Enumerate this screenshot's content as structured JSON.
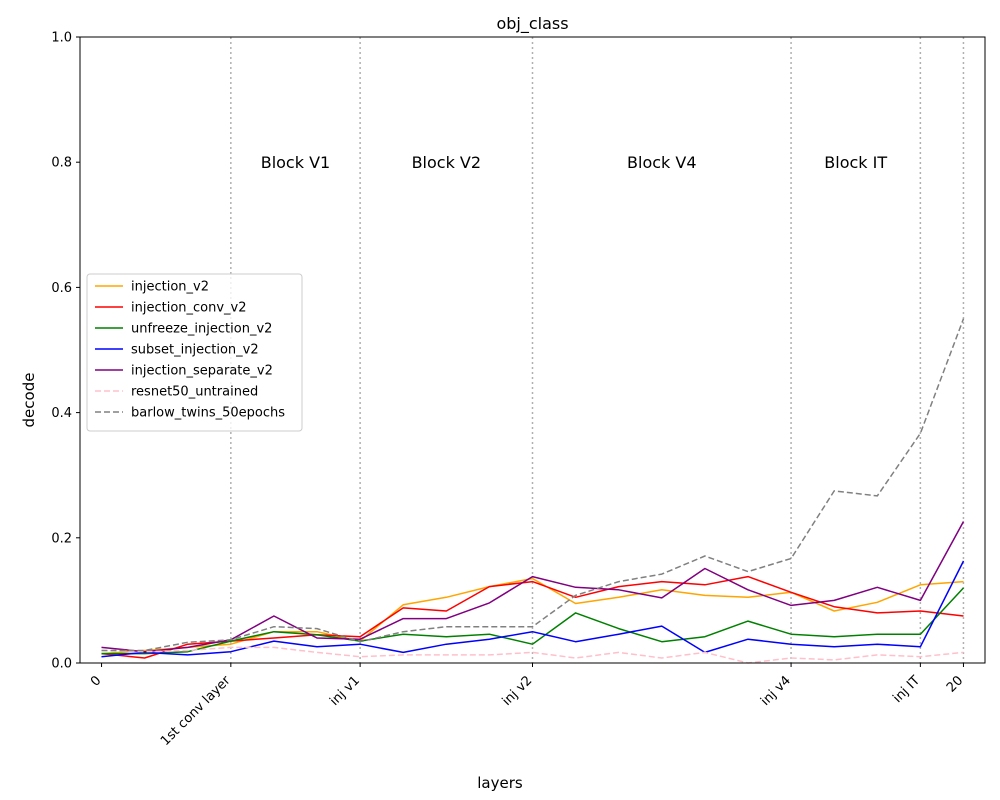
{
  "chart_data": {
    "type": "line",
    "title": "obj_class",
    "xlabel": "layers",
    "ylabel": "decode",
    "xlim": [
      -0.5,
      20.5
    ],
    "ylim": [
      0,
      1.0
    ],
    "x": [
      0,
      1,
      2,
      3,
      4,
      5,
      6,
      7,
      8,
      9,
      10,
      11,
      12,
      13,
      14,
      15,
      16,
      17,
      18,
      19,
      20
    ],
    "y_ticks": [
      {
        "value": 0.0,
        "label": "0.0"
      },
      {
        "value": 0.2,
        "label": "0.2"
      },
      {
        "value": 0.4,
        "label": "0.4"
      },
      {
        "value": 0.6,
        "label": "0.6"
      },
      {
        "value": 0.8,
        "label": "0.8"
      },
      {
        "value": 1.0,
        "label": "1.0"
      }
    ],
    "x_ticks": [
      {
        "value": 0,
        "label": "0"
      },
      {
        "value": 3,
        "label": "1st conv layer"
      },
      {
        "value": 6,
        "label": "inj v1"
      },
      {
        "value": 10,
        "label": "inj v2"
      },
      {
        "value": 16,
        "label": "inj v4"
      },
      {
        "value": 19,
        "label": "inj IT"
      },
      {
        "value": 20,
        "label": "20"
      }
    ],
    "vlines": [
      3,
      6,
      10,
      16,
      19,
      20
    ],
    "block_labels": [
      {
        "text": "Block V1",
        "x": 4.5,
        "y": 0.8
      },
      {
        "text": "Block V2",
        "x": 8.0,
        "y": 0.8
      },
      {
        "text": "Block V4",
        "x": 13.0,
        "y": 0.8
      },
      {
        "text": "Block IT",
        "x": 17.5,
        "y": 0.8
      }
    ],
    "legend_position": "center-left",
    "series": [
      {
        "name": "injection_v2",
        "color": "#ffa500",
        "style": "solid",
        "values": [
          0.015,
          0.02,
          0.025,
          0.03,
          0.05,
          0.05,
          0.035,
          0.093,
          0.105,
          0.122,
          0.135,
          0.095,
          0.105,
          0.117,
          0.108,
          0.105,
          0.113,
          0.083,
          0.097,
          0.125,
          0.13
        ]
      },
      {
        "name": "injection_conv_v2",
        "color": "#ff0000",
        "style": "solid",
        "values": [
          0.015,
          0.008,
          0.03,
          0.035,
          0.04,
          0.045,
          0.042,
          0.088,
          0.083,
          0.122,
          0.13,
          0.105,
          0.122,
          0.13,
          0.125,
          0.138,
          0.113,
          0.09,
          0.08,
          0.083,
          0.075
        ]
      },
      {
        "name": "unfreeze_injection_v2",
        "color": "#008000",
        "style": "solid",
        "values": [
          0.015,
          0.015,
          0.018,
          0.035,
          0.05,
          0.045,
          0.035,
          0.046,
          0.042,
          0.046,
          0.03,
          0.08,
          0.055,
          0.034,
          0.042,
          0.067,
          0.046,
          0.042,
          0.046,
          0.046,
          0.12
        ]
      },
      {
        "name": "subset_injection_v2",
        "color": "#0000ff",
        "style": "solid",
        "values": [
          0.01,
          0.017,
          0.013,
          0.018,
          0.035,
          0.026,
          0.03,
          0.017,
          0.03,
          0.038,
          0.05,
          0.034,
          0.046,
          0.059,
          0.017,
          0.038,
          0.03,
          0.026,
          0.03,
          0.026,
          0.163
        ]
      },
      {
        "name": "injection_separate_v2",
        "color": "#800080",
        "style": "solid",
        "values": [
          0.025,
          0.018,
          0.025,
          0.037,
          0.075,
          0.04,
          0.038,
          0.071,
          0.071,
          0.096,
          0.138,
          0.121,
          0.117,
          0.104,
          0.151,
          0.117,
          0.092,
          0.1,
          0.121,
          0.1,
          0.226
        ]
      },
      {
        "name": "resnet50_untrained",
        "color": "#ffc0cb",
        "style": "dashed",
        "values": [
          0.02,
          0.018,
          0.02,
          0.025,
          0.025,
          0.017,
          0.01,
          0.013,
          0.013,
          0.013,
          0.017,
          0.008,
          0.017,
          0.008,
          0.017,
          0.0,
          0.008,
          0.005,
          0.013,
          0.01,
          0.017
        ]
      },
      {
        "name": "barlow_twins_50epochs",
        "color": "#808080",
        "style": "dashed",
        "values": [
          0.02,
          0.02,
          0.033,
          0.037,
          0.058,
          0.055,
          0.034,
          0.05,
          0.058,
          0.058,
          0.058,
          0.108,
          0.13,
          0.142,
          0.171,
          0.146,
          0.167,
          0.275,
          0.267,
          0.367,
          0.55
        ]
      }
    ]
  }
}
